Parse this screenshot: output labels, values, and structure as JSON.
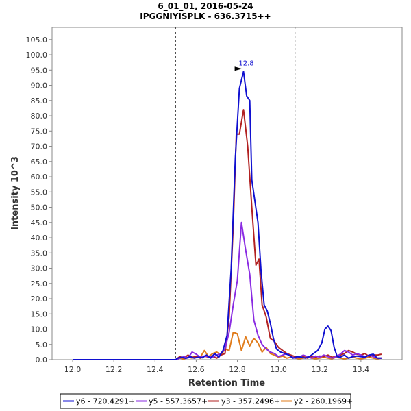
{
  "chart_data": {
    "type": "line",
    "title": "6_01_01, 2016-05-24",
    "subtitle": "IPGGNIYISPLK - 636.3715++",
    "xlabel": "Retention Time",
    "ylabel": "Intensity 10^3",
    "xlim": [
      11.9,
      13.6
    ],
    "ylim": [
      0,
      109
    ],
    "xticks": [
      "12.0",
      "12.2",
      "12.4",
      "12.6",
      "12.8",
      "13.0",
      "13.2",
      "13.4"
    ],
    "xtick_values": [
      12.0,
      12.2,
      12.4,
      12.6,
      12.8,
      13.0,
      13.2,
      13.4
    ],
    "xtick_labels": [
      "12.0",
      "12.2",
      "12.4",
      "12.6",
      "12.8",
      "13.0",
      "13.2",
      "13.4"
    ],
    "ytick_values": [
      0,
      5,
      10,
      15,
      20,
      25,
      30,
      35,
      40,
      45,
      50,
      55,
      60,
      65,
      70,
      75,
      80,
      85,
      90,
      95,
      100,
      105
    ],
    "ytick_labels": [
      "0.0",
      "5.0",
      "10.0",
      "15.0",
      "20.0",
      "25.0",
      "30.0",
      "35.0",
      "40.0",
      "45.0",
      "50.0",
      "55.0",
      "60.0",
      "65.0",
      "70.0",
      "75.0",
      "80.0",
      "85.0",
      "90.0",
      "95.0",
      "100.0",
      "105.0"
    ],
    "grid": false,
    "legend_position": "bottom",
    "boundaries": [
      12.5,
      13.08
    ],
    "peak_annotation": {
      "label": "12.8",
      "x": 12.84,
      "y": 95.0,
      "color": "#1010d0"
    },
    "series": [
      {
        "name": "y6 - 720.4291+",
        "color": "#1010d0",
        "x": [
          12.0,
          12.5,
          12.51,
          12.53,
          12.55,
          12.57,
          12.59,
          12.61,
          12.63,
          12.65,
          12.67,
          12.69,
          12.71,
          12.73,
          12.75,
          12.77,
          12.79,
          12.81,
          12.83,
          12.845,
          12.86,
          12.87,
          12.885,
          12.9,
          12.915,
          12.93,
          12.945,
          12.96,
          12.975,
          12.99,
          13.01,
          13.03,
          13.05,
          13.07,
          13.09,
          13.11,
          13.13,
          13.15,
          13.17,
          13.19,
          13.21,
          13.225,
          13.24,
          13.255,
          13.27,
          13.285,
          13.3,
          13.32,
          13.34,
          13.36,
          13.38,
          13.4,
          13.42,
          13.44,
          13.46,
          13.48,
          13.5
        ],
        "y": [
          0.0,
          0.0,
          0.5,
          0.8,
          0.4,
          1.0,
          0.5,
          0.8,
          0.6,
          1.5,
          0.5,
          2.0,
          0.8,
          3.0,
          8.0,
          30.0,
          66.0,
          89.0,
          94.5,
          86.5,
          85.0,
          59.0,
          52.0,
          45.0,
          29.0,
          18.0,
          16.0,
          12.0,
          7.0,
          3.5,
          2.5,
          2.0,
          1.5,
          0.5,
          1.0,
          0.8,
          0.5,
          1.0,
          2.0,
          3.0,
          5.5,
          10.0,
          11.0,
          9.5,
          4.0,
          1.0,
          0.8,
          1.5,
          0.5,
          1.0,
          1.2,
          1.0,
          0.8,
          1.5,
          1.8,
          0.5,
          0.5
        ]
      },
      {
        "name": "y5 - 557.3657+",
        "color": "#8a2be2",
        "x": [
          12.5,
          12.52,
          12.54,
          12.56,
          12.58,
          12.6,
          12.62,
          12.64,
          12.66,
          12.68,
          12.7,
          12.72,
          12.74,
          12.76,
          12.78,
          12.8,
          12.82,
          12.84,
          12.86,
          12.88,
          12.9,
          12.92,
          12.94,
          12.96,
          12.98,
          13.0,
          13.02,
          13.04,
          13.06,
          13.08,
          13.1,
          13.12,
          13.14,
          13.16,
          13.18,
          13.2,
          13.22,
          13.24,
          13.26,
          13.28,
          13.3,
          13.32,
          13.34,
          13.36,
          13.38,
          13.4,
          13.42,
          13.44,
          13.46,
          13.48,
          13.5
        ],
        "y": [
          0.0,
          0.5,
          1.0,
          0.5,
          2.5,
          1.8,
          0.8,
          1.2,
          1.0,
          0.8,
          1.5,
          2.0,
          3.5,
          9.0,
          18.0,
          26.0,
          45.0,
          36.0,
          28.0,
          13.0,
          8.0,
          5.0,
          3.5,
          2.5,
          2.0,
          1.0,
          1.5,
          2.0,
          1.0,
          0.5,
          0.8,
          1.5,
          1.0,
          0.5,
          1.2,
          0.8,
          1.5,
          1.0,
          0.5,
          1.0,
          1.8,
          3.0,
          2.5,
          1.5,
          2.0,
          1.5,
          1.0,
          1.5,
          1.0,
          0.5,
          0.5
        ]
      },
      {
        "name": "y3 - 357.2496+",
        "color": "#b22222",
        "x": [
          12.5,
          12.52,
          12.54,
          12.56,
          12.58,
          12.6,
          12.62,
          12.64,
          12.66,
          12.68,
          12.7,
          12.72,
          12.74,
          12.76,
          12.78,
          12.795,
          12.81,
          12.83,
          12.85,
          12.87,
          12.89,
          12.905,
          12.92,
          12.94,
          12.96,
          12.98,
          13.0,
          13.02,
          13.04,
          13.06,
          13.08,
          13.1,
          13.12,
          13.14,
          13.16,
          13.18,
          13.2,
          13.22,
          13.24,
          13.26,
          13.28,
          13.3,
          13.32,
          13.34,
          13.36,
          13.38,
          13.4,
          13.42,
          13.44,
          13.46,
          13.48,
          13.5
        ],
        "y": [
          0.0,
          1.0,
          0.5,
          1.5,
          0.8,
          1.0,
          0.5,
          1.2,
          0.8,
          1.0,
          0.5,
          1.5,
          2.0,
          14.0,
          44.0,
          74.0,
          74.0,
          82.0,
          70.0,
          50.0,
          31.0,
          33.0,
          18.0,
          14.0,
          7.0,
          6.0,
          4.0,
          3.0,
          2.0,
          1.5,
          1.0,
          0.8,
          1.0,
          0.5,
          1.0,
          0.8,
          1.2,
          1.0,
          1.5,
          0.8,
          1.0,
          1.5,
          2.0,
          3.0,
          2.5,
          1.8,
          1.5,
          2.0,
          1.0,
          1.5,
          1.5,
          1.8
        ]
      },
      {
        "name": "y2 - 260.1969+",
        "color": "#e07b1a",
        "x": [
          12.5,
          12.52,
          12.54,
          12.56,
          12.58,
          12.6,
          12.62,
          12.64,
          12.66,
          12.68,
          12.7,
          12.72,
          12.74,
          12.76,
          12.78,
          12.8,
          12.82,
          12.84,
          12.86,
          12.88,
          12.9,
          12.92,
          12.94,
          12.96,
          12.98,
          13.0,
          13.02,
          13.04,
          13.06,
          13.08,
          13.1,
          13.12,
          13.14,
          13.16,
          13.18,
          13.2,
          13.22,
          13.24,
          13.26,
          13.28,
          13.3,
          13.32,
          13.34,
          13.36,
          13.38,
          13.4,
          13.42,
          13.44,
          13.46,
          13.48,
          13.5
        ],
        "y": [
          0.0,
          0.5,
          0.2,
          0.8,
          0.5,
          1.0,
          0.8,
          3.0,
          1.0,
          2.0,
          2.5,
          1.5,
          3.5,
          3.0,
          9.0,
          8.5,
          3.0,
          7.5,
          4.5,
          7.0,
          5.5,
          2.5,
          4.0,
          2.0,
          1.5,
          0.8,
          1.2,
          0.5,
          0.8,
          0.5,
          0.3,
          0.5,
          0.8,
          0.5,
          0.3,
          0.5,
          0.8,
          0.5,
          0.3,
          0.8,
          0.5,
          0.3,
          0.5,
          0.8,
          0.5,
          0.3,
          0.5,
          0.8,
          0.5,
          0.3,
          0.5
        ]
      }
    ]
  }
}
